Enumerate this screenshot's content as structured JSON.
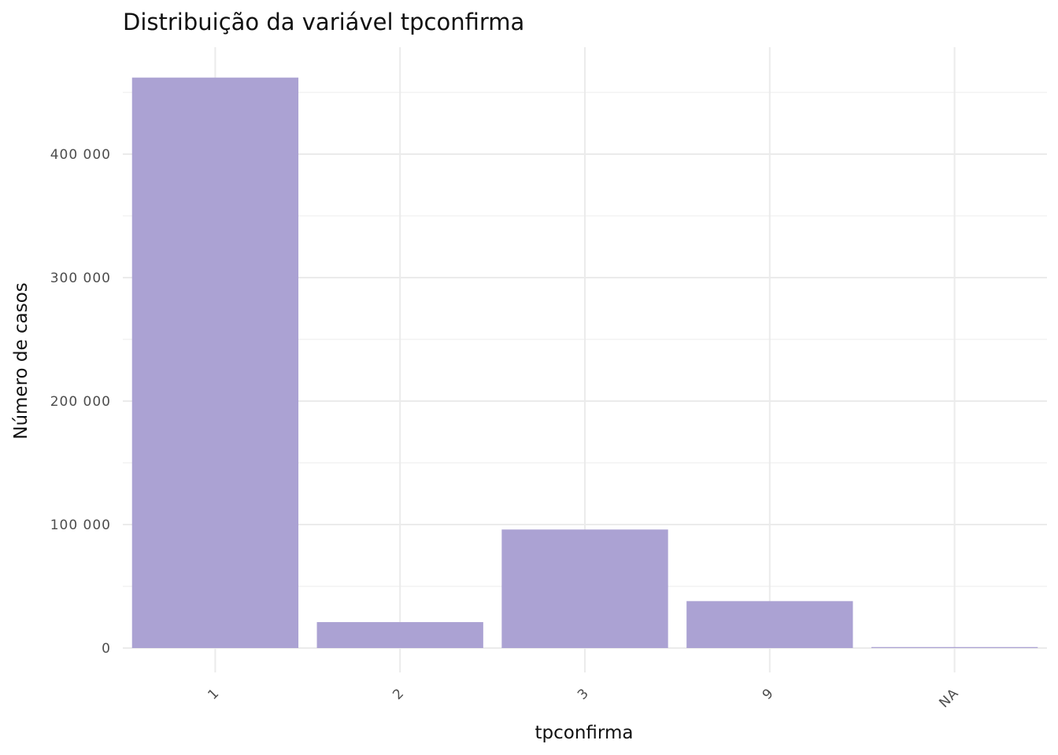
{
  "chart_data": {
    "type": "bar",
    "title": "Distribuição da variável  tpconfirma",
    "xlabel": "tpconfirma",
    "ylabel": "Número de casos",
    "categories": [
      "1",
      "2",
      "3",
      "9",
      "NA"
    ],
    "values": [
      462000,
      21000,
      96000,
      38000,
      800
    ],
    "ylim": [
      0,
      470000
    ],
    "yticks": [
      0,
      100000,
      200000,
      300000,
      400000
    ],
    "ytick_labels": [
      "0",
      "100 000",
      "200 000",
      "300 000",
      "400 000"
    ],
    "grid": true,
    "legend": "none",
    "bar_color": "#aba2d3"
  }
}
